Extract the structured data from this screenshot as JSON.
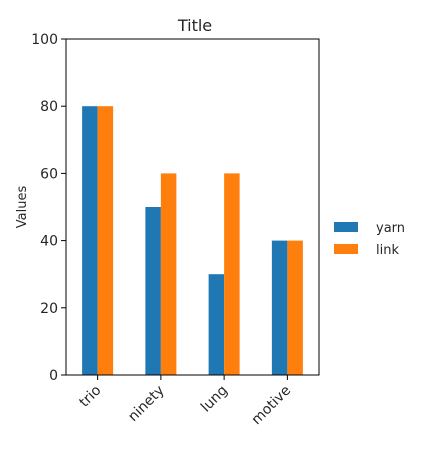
{
  "chart_data": {
    "type": "bar",
    "title": "Title",
    "xlabel": "",
    "ylabel": "Values",
    "ylim": [
      0,
      100
    ],
    "yticks": [
      0,
      20,
      40,
      60,
      80,
      100
    ],
    "categories": [
      "trio",
      "ninety",
      "lung",
      "motive"
    ],
    "series": [
      {
        "name": "yarn",
        "color": "#1f77b4",
        "values": [
          80,
          50,
          30,
          40
        ]
      },
      {
        "name": "link",
        "color": "#ff7f0e",
        "values": [
          80,
          60,
          60,
          40
        ]
      }
    ],
    "legend_position": "right",
    "grid": false
  }
}
